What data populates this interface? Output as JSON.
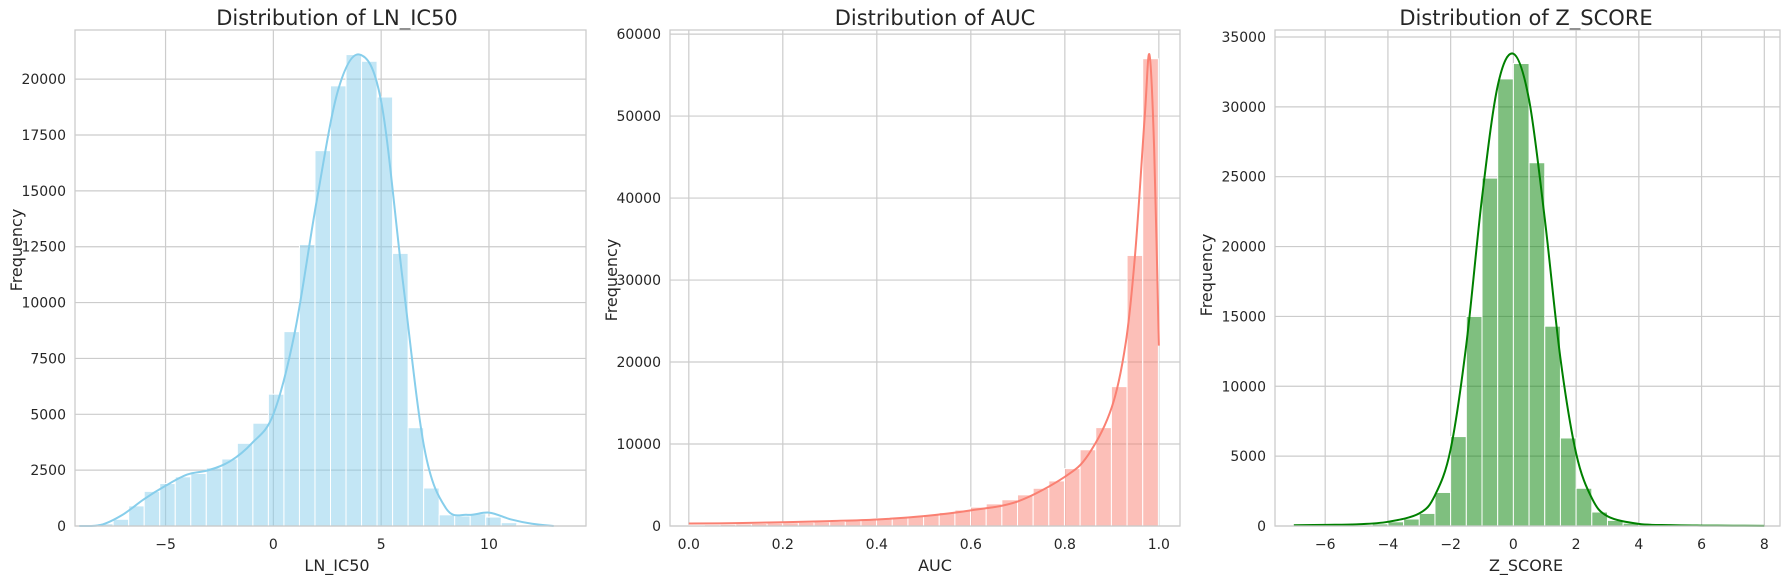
{
  "chart_data": [
    {
      "type": "histogram",
      "title": "Distribution of LN_IC50",
      "xlabel": "LN_IC50",
      "ylabel": "Frequency",
      "color": "#87ceeb",
      "xlim": [
        -9.2,
        14.5
      ],
      "ylim": [
        0,
        22200
      ],
      "xticks": [
        -5,
        0,
        5,
        10
      ],
      "xtick_labels": [
        "−5",
        "0",
        "5",
        "10"
      ],
      "yticks": [
        0,
        2500,
        5000,
        7500,
        10000,
        12500,
        15000,
        17500,
        20000
      ],
      "ytick_labels": [
        "0",
        "2500",
        "5000",
        "7500",
        "10000",
        "12500",
        "15000",
        "17500",
        "20000"
      ],
      "bin_start": -8.15,
      "bin_width": 0.72,
      "counts": [
        100,
        300,
        900,
        1550,
        1900,
        2200,
        2350,
        2600,
        3000,
        3700,
        4600,
        5900,
        8700,
        12600,
        16800,
        19700,
        21100,
        20800,
        19200,
        12200,
        4400,
        1700,
        500,
        450,
        550,
        400,
        150,
        50,
        10,
        5
      ],
      "kde_x": [
        -9.0,
        -8.0,
        -7.0,
        -6.0,
        -5.0,
        -4.0,
        -3.0,
        -2.0,
        -1.0,
        0.0,
        1.0,
        2.0,
        3.0,
        4.0,
        5.0,
        6.0,
        7.0,
        8.0,
        9.0,
        10.0,
        11.0,
        12.0,
        13.0
      ],
      "kde_y": [
        0,
        50,
        500,
        1200,
        1800,
        2300,
        2500,
        2900,
        3700,
        5000,
        8700,
        14500,
        19500,
        21100,
        19000,
        11000,
        3500,
        800,
        500,
        600,
        300,
        100,
        0
      ],
      "grid": true
    },
    {
      "type": "histogram",
      "title": "Distribution of AUC",
      "xlabel": "AUC",
      "ylabel": "Frequency",
      "color": "#fa8072",
      "xlim": [
        -0.04,
        1.045
      ],
      "ylim": [
        0,
        60500
      ],
      "xticks": [
        0.0,
        0.2,
        0.4,
        0.6,
        0.8,
        1.0
      ],
      "xtick_labels": [
        "0.0",
        "0.2",
        "0.4",
        "0.6",
        "0.8",
        "1.0"
      ],
      "yticks": [
        0,
        10000,
        20000,
        30000,
        40000,
        50000,
        60000
      ],
      "ytick_labels": [
        "0",
        "10000",
        "20000",
        "30000",
        "40000",
        "50000",
        "60000"
      ],
      "bin_start": 0.0,
      "bin_width": 0.0333,
      "counts": [
        100,
        150,
        200,
        250,
        300,
        350,
        400,
        450,
        500,
        550,
        650,
        750,
        900,
        1050,
        1200,
        1400,
        1650,
        1950,
        2300,
        2700,
        3200,
        3800,
        4600,
        5500,
        7000,
        9300,
        12000,
        17000,
        33000,
        57000
      ],
      "kde_x": [
        0.0,
        0.1,
        0.2,
        0.3,
        0.4,
        0.5,
        0.6,
        0.7,
        0.8,
        0.85,
        0.9,
        0.93,
        0.95,
        0.97,
        0.98,
        0.99,
        1.0
      ],
      "kde_y": [
        300,
        350,
        450,
        600,
        800,
        1200,
        1900,
        3000,
        6000,
        8700,
        14500,
        22500,
        33500,
        50000,
        57500,
        46000,
        22000
      ],
      "grid": true
    },
    {
      "type": "histogram",
      "title": "Distribution of Z_SCORE",
      "xlabel": "Z_SCORE",
      "ylabel": "Frequency",
      "color": "#008000",
      "xlim": [
        -7.6,
        8.5
      ],
      "ylim": [
        0,
        35500
      ],
      "xticks": [
        -6,
        -4,
        -2,
        0,
        2,
        4,
        6,
        8
      ],
      "xtick_labels": [
        "−6",
        "−4",
        "−2",
        "0",
        "2",
        "4",
        "6",
        "8"
      ],
      "yticks": [
        0,
        5000,
        10000,
        15000,
        20000,
        25000,
        30000,
        35000
      ],
      "ytick_labels": [
        "0",
        "5000",
        "10000",
        "15000",
        "20000",
        "25000",
        "30000",
        "35000"
      ],
      "bin_start": -7.0,
      "bin_width": 0.5,
      "counts": [
        5,
        10,
        20,
        40,
        80,
        150,
        300,
        500,
        900,
        2400,
        6400,
        15000,
        24900,
        32000,
        33100,
        26000,
        14300,
        6300,
        2700,
        1000,
        400,
        200,
        100,
        50,
        30,
        15,
        10,
        5,
        3,
        2
      ],
      "kde_x": [
        -7,
        -6,
        -5,
        -4,
        -3,
        -2.5,
        -2,
        -1.5,
        -1,
        -0.5,
        0,
        0.5,
        1,
        1.5,
        2,
        2.5,
        3,
        4,
        5,
        6,
        7,
        8
      ],
      "kde_y": [
        50,
        80,
        120,
        300,
        900,
        2200,
        5500,
        13000,
        23500,
        31500,
        33800,
        30500,
        22000,
        12000,
        5200,
        2000,
        700,
        150,
        60,
        30,
        20,
        10
      ],
      "grid": true
    }
  ]
}
